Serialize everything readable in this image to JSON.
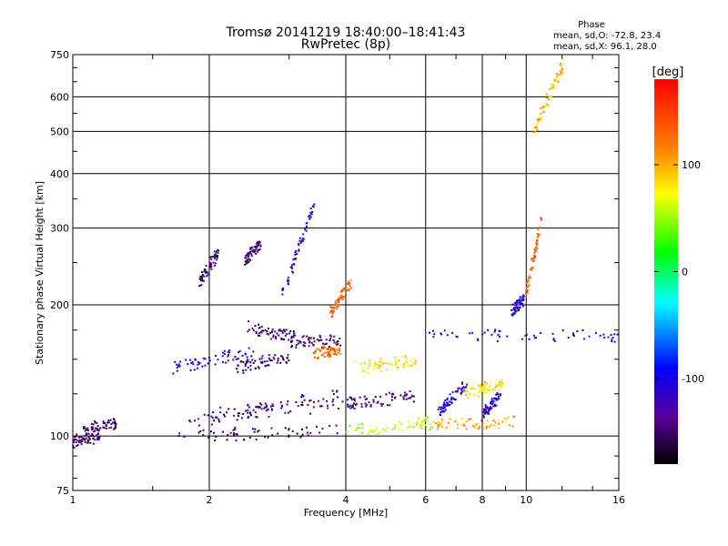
{
  "chart_data": {
    "type": "scatter",
    "title": "Tromsø 20141219 18:40:00–18:41:43",
    "subtitle": "RwPretec (8p)",
    "xlabel": "Frequency [MHz]",
    "ylabel": "Stationary phase Virtual Height [km]",
    "x_scale": "log",
    "y_scale": "log",
    "xlim": [
      1,
      16
    ],
    "ylim": [
      75,
      750
    ],
    "x_ticks": [
      1,
      2,
      4,
      6,
      8,
      10,
      16
    ],
    "y_ticks": [
      75,
      100,
      200,
      300,
      400,
      500,
      600,
      750
    ],
    "grid": true,
    "stats": {
      "title": "Phase",
      "line_o": "mean, sd,O: -72.8, 23.4",
      "line_x": "mean, sd,X:  96.1, 28.0"
    },
    "colorbar": {
      "unit": "[deg]",
      "range": [
        -180,
        180
      ],
      "ticks": [
        100,
        0,
        -100
      ],
      "colormap": [
        "#000000",
        "#5a0096",
        "#0000ff",
        "#00ffff",
        "#00ff00",
        "#ffff00",
        "#ff8000",
        "#ff0000"
      ]
    },
    "traces": [
      {
        "x0": 1.0,
        "x1": 1.15,
        "y0": 97,
        "y1": 100,
        "p": -150
      },
      {
        "x0": 1.05,
        "x1": 1.25,
        "y0": 103,
        "y1": 107,
        "p": -150
      },
      {
        "x0": 1.7,
        "x1": 3.9,
        "y0": 100,
        "y1": 103,
        "p": -145
      },
      {
        "x0": 3.9,
        "x1": 6.3,
        "y0": 103,
        "y1": 107,
        "p": 60
      },
      {
        "x0": 6.3,
        "x1": 9.4,
        "y0": 106,
        "y1": 108,
        "p": 100
      },
      {
        "x0": 1.8,
        "x1": 4.3,
        "y0": 108,
        "y1": 120,
        "p": -145
      },
      {
        "x0": 2.0,
        "x1": 3.9,
        "y0": 111,
        "y1": 125,
        "p": -145
      },
      {
        "x0": 4.0,
        "x1": 5.7,
        "y0": 118,
        "y1": 124,
        "p": -145
      },
      {
        "x0": 1.65,
        "x1": 2.5,
        "y0": 143,
        "y1": 156,
        "p": -110
      },
      {
        "x0": 2.3,
        "x1": 3.0,
        "y0": 143,
        "y1": 153,
        "p": -150
      },
      {
        "x0": 2.4,
        "x1": 3.1,
        "y0": 178,
        "y1": 168,
        "p": -150
      },
      {
        "x0": 3.0,
        "x1": 3.9,
        "y0": 165,
        "y1": 165,
        "p": -150
      },
      {
        "x0": 3.4,
        "x1": 3.9,
        "y0": 155,
        "y1": 158,
        "p": 130
      },
      {
        "x0": 4.2,
        "x1": 5.8,
        "y0": 143,
        "y1": 150,
        "p": 80
      },
      {
        "x0": 5.9,
        "x1": 16,
        "y0": 170,
        "y1": 170,
        "p": -110
      },
      {
        "x0": 6.4,
        "x1": 7.4,
        "y0": 113,
        "y1": 132,
        "p": -110
      },
      {
        "x0": 7.3,
        "x1": 8.9,
        "y0": 125,
        "y1": 132,
        "p": 80
      },
      {
        "x0": 8.0,
        "x1": 8.8,
        "y0": 112,
        "y1": 125,
        "p": -110
      },
      {
        "x0": 1.9,
        "x1": 2.1,
        "y0": 225,
        "y1": 265,
        "p": -150
      },
      {
        "x0": 2.9,
        "x1": 3.4,
        "y0": 210,
        "y1": 340,
        "p": -110
      },
      {
        "x0": 2.4,
        "x1": 2.6,
        "y0": 255,
        "y1": 275,
        "p": -150
      },
      {
        "x0": 3.7,
        "x1": 4.1,
        "y0": 190,
        "y1": 225,
        "p": 130
      },
      {
        "x0": 9.3,
        "x1": 9.9,
        "y0": 195,
        "y1": 205,
        "p": -110
      },
      {
        "x0": 10.0,
        "x1": 10.8,
        "y0": 215,
        "y1": 310,
        "p": 130
      },
      {
        "x0": 10.4,
        "x1": 12.0,
        "y0": 500,
        "y1": 700,
        "p": 100
      }
    ]
  }
}
